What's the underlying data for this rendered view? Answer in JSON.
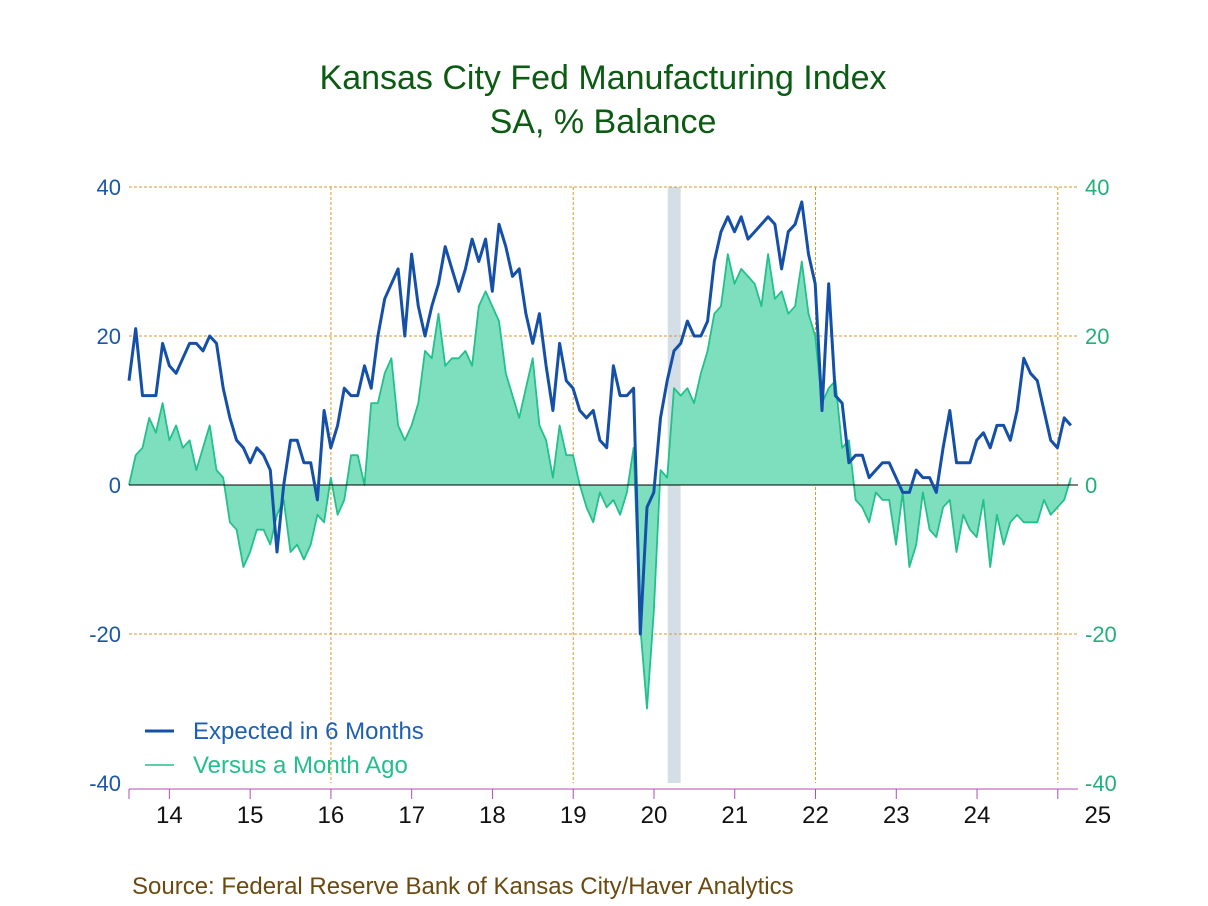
{
  "chart_data": {
    "type": "line",
    "title": "Kansas City Fed Manufacturing Index",
    "subtitle": "SA, % Balance",
    "source": "Source:  Federal Reserve Bank of Kansas City/Haver Analytics",
    "ylim": [
      -40,
      40
    ],
    "yticks_left": [
      "40",
      "20",
      "0",
      "-20",
      "-40"
    ],
    "yticks_right": [
      "40",
      "20",
      "0",
      "-20",
      "-40"
    ],
    "xlim": [
      2013.5,
      2025.25
    ],
    "x_tick_labels": [
      "14",
      "15",
      "16",
      "17",
      "18",
      "19",
      "20",
      "21",
      "22",
      "23",
      "24",
      "25"
    ],
    "recession_shading": [
      2020.17,
      2020.33
    ],
    "grid": true,
    "legend_position": "bottom-left",
    "colors": {
      "expected": "#1550a8",
      "versus": "#22c08a",
      "fill": "#7edfbe",
      "title": "#0b5c12",
      "grid": "#d99a2b",
      "recession": "#d3dee6"
    },
    "series": [
      {
        "name": "Expected in 6 Months",
        "style": "line",
        "start": 2013.5,
        "step": 0.0833,
        "values": [
          14,
          21,
          12,
          12,
          12,
          19,
          16,
          15,
          17,
          19,
          19,
          18,
          20,
          19,
          13,
          9,
          6,
          5,
          3,
          5,
          4,
          2,
          -9,
          0,
          6,
          6,
          3,
          3,
          -2,
          10,
          5,
          8,
          13,
          12,
          12,
          16,
          13,
          20,
          25,
          27,
          29,
          20,
          31,
          24,
          20,
          24,
          27,
          32,
          29,
          26,
          29,
          33,
          30,
          33,
          26,
          35,
          32,
          28,
          29,
          23,
          19,
          23,
          16,
          10,
          19,
          14,
          13,
          10,
          9,
          10,
          6,
          5,
          16,
          12,
          12,
          13,
          -20,
          -3,
          -1,
          9,
          14,
          18,
          19,
          22,
          20,
          20,
          22,
          30,
          34,
          36,
          34,
          36,
          33,
          34,
          35,
          36,
          35,
          29,
          34,
          35,
          38,
          31,
          27,
          10,
          27,
          12,
          11,
          3,
          4,
          4,
          1,
          2,
          3,
          3,
          1,
          -1,
          -1,
          2,
          1,
          1,
          -1,
          5,
          10,
          3,
          3,
          3,
          6,
          7,
          5,
          8,
          8,
          6,
          10,
          17,
          15,
          14,
          10,
          6,
          5,
          9,
          8
        ]
      },
      {
        "name": "Versus a Month Ago",
        "style": "area",
        "start": 2013.5,
        "step": 0.0833,
        "values": [
          0,
          4,
          5,
          9,
          7,
          11,
          6,
          8,
          5,
          6,
          2,
          5,
          8,
          2,
          1,
          -5,
          -6,
          -11,
          -9,
          -6,
          -6,
          -8,
          -4,
          -2,
          -9,
          -8,
          -10,
          -8,
          -4,
          -5,
          1,
          -4,
          -2,
          4,
          4,
          0,
          11,
          11,
          15,
          17,
          8,
          6,
          8,
          11,
          18,
          17,
          23,
          16,
          17,
          17,
          18,
          16,
          24,
          26,
          24,
          22,
          15,
          12,
          9,
          13,
          17,
          8,
          6,
          1,
          8,
          4,
          4,
          0,
          -3,
          -5,
          -1,
          -3,
          -2,
          -4,
          -1,
          5,
          -19,
          -30,
          -17,
          2,
          1,
          13,
          12,
          13,
          11,
          15,
          18,
          23,
          24,
          31,
          27,
          29,
          28,
          27,
          24,
          31,
          25,
          26,
          23,
          24,
          30,
          23,
          20,
          11,
          13,
          14,
          5,
          6,
          -2,
          -3,
          -5,
          -1,
          -2,
          -2,
          -8,
          -1,
          -11,
          -8,
          -1,
          -6,
          -7,
          -3,
          -2,
          -9,
          -4,
          -6,
          -7,
          -2,
          -11,
          -4,
          -8,
          -5,
          -4,
          -5,
          -5,
          -5,
          -2,
          -4,
          -3,
          -2,
          1
        ]
      }
    ]
  }
}
